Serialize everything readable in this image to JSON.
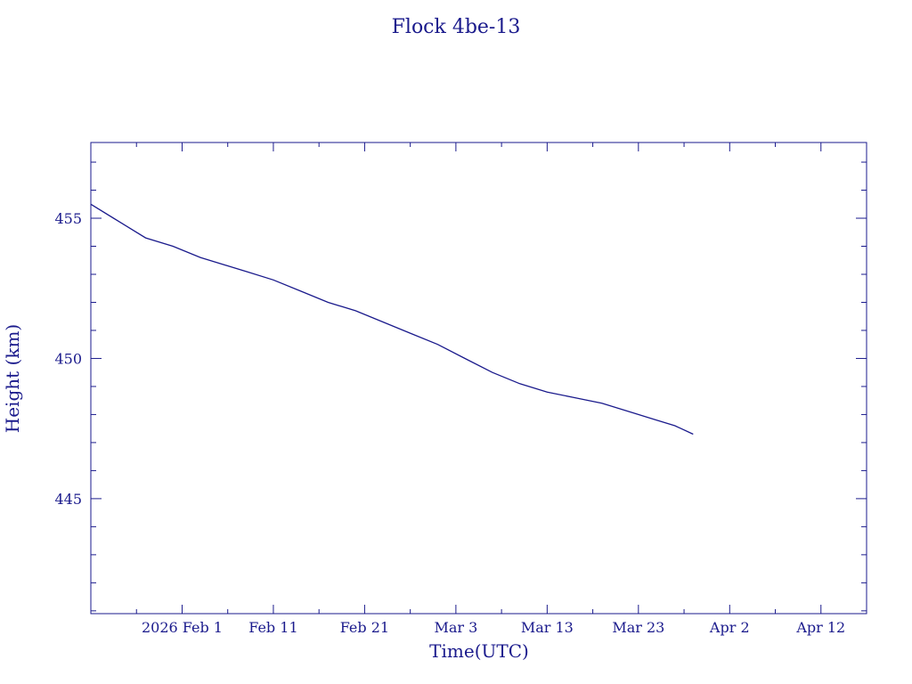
{
  "chart_data": {
    "type": "line",
    "title": "Flock 4be-13",
    "xlabel": "Time(UTC)",
    "ylabel": "Height (km)",
    "colors": {
      "ink": "#1a1a8c",
      "background": "#ffffff"
    },
    "xlim": [
      "2026-01-22",
      "2026-04-17"
    ],
    "ylim": [
      440.9,
      457.7
    ],
    "grid": false,
    "x_ticks": [
      {
        "date": "2026-02-01",
        "label": "2026 Feb  1"
      },
      {
        "date": "2026-02-11",
        "label": "Feb 11"
      },
      {
        "date": "2026-02-21",
        "label": "Feb 21"
      },
      {
        "date": "2026-03-03",
        "label": "Mar  3"
      },
      {
        "date": "2026-03-13",
        "label": "Mar 13"
      },
      {
        "date": "2026-03-23",
        "label": "Mar 23"
      },
      {
        "date": "2026-04-02",
        "label": "Apr  2"
      },
      {
        "date": "2026-04-12",
        "label": "Apr 12"
      }
    ],
    "y_ticks": [
      {
        "value": 445,
        "label": "445"
      },
      {
        "value": 450,
        "label": "450"
      },
      {
        "value": 455,
        "label": "455"
      }
    ],
    "series": [
      {
        "x": [
          "2026-01-22",
          "2026-01-25",
          "2026-01-28",
          "2026-01-31",
          "2026-02-03",
          "2026-02-06",
          "2026-02-08",
          "2026-02-11",
          "2026-02-14",
          "2026-02-17",
          "2026-02-20",
          "2026-02-23",
          "2026-02-26",
          "2026-03-01",
          "2026-03-04",
          "2026-03-07",
          "2026-03-10",
          "2026-03-13",
          "2026-03-16",
          "2026-03-19",
          "2026-03-22",
          "2026-03-25",
          "2026-03-27",
          "2026-03-29"
        ],
        "y": [
          455.5,
          454.9,
          454.3,
          454.0,
          453.6,
          453.3,
          453.1,
          452.8,
          452.4,
          452.0,
          451.7,
          451.3,
          450.9,
          450.5,
          450.0,
          449.5,
          449.1,
          448.8,
          448.6,
          448.4,
          448.1,
          447.8,
          447.6,
          447.3
        ]
      }
    ]
  }
}
